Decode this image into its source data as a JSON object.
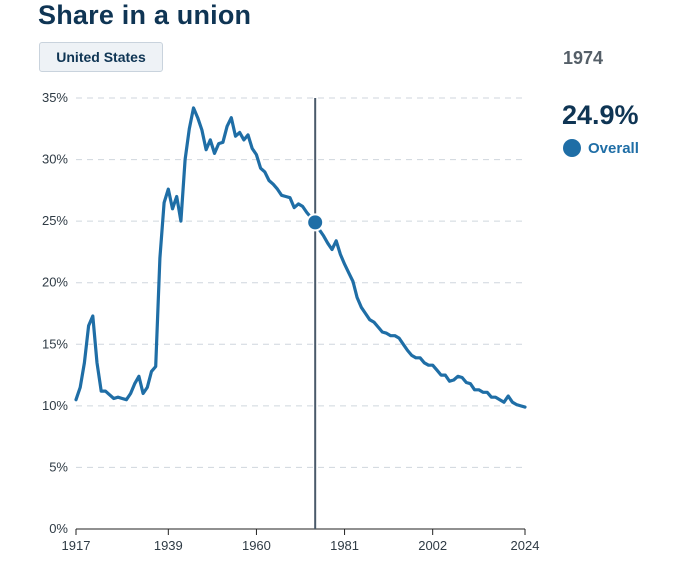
{
  "title": "Share in a union",
  "region_button": "United States",
  "selected": {
    "year": "1974",
    "value": "24.9%",
    "series_label": "Overall",
    "x": 1974,
    "y": 24.9
  },
  "colors": {
    "line": "#1f6ea6",
    "title": "#0f3554",
    "marker_line": "#4a5a6a",
    "grid": "#cfd6dd"
  },
  "chart_data": {
    "type": "line",
    "title": "Share in a union",
    "xlabel": "",
    "ylabel": "",
    "xlim": [
      1917,
      2024
    ],
    "ylim": [
      0,
      35
    ],
    "x_ticks": [
      1917,
      1939,
      1960,
      1981,
      2002,
      2024
    ],
    "y_ticks": [
      0,
      5,
      10,
      15,
      20,
      25,
      30,
      35
    ],
    "y_tick_labels": [
      "0%",
      "5%",
      "10%",
      "15%",
      "20%",
      "25%",
      "30%",
      "35%"
    ],
    "grid": true,
    "series": [
      {
        "name": "Overall",
        "x": [
          1917,
          1918,
          1919,
          1920,
          1921,
          1922,
          1923,
          1924,
          1925,
          1926,
          1927,
          1928,
          1929,
          1930,
          1931,
          1932,
          1933,
          1934,
          1935,
          1936,
          1937,
          1938,
          1939,
          1940,
          1941,
          1942,
          1943,
          1944,
          1945,
          1946,
          1947,
          1948,
          1949,
          1950,
          1951,
          1952,
          1953,
          1954,
          1955,
          1956,
          1957,
          1958,
          1959,
          1960,
          1961,
          1962,
          1963,
          1964,
          1965,
          1966,
          1967,
          1968,
          1969,
          1970,
          1971,
          1972,
          1973,
          1974,
          1975,
          1976,
          1977,
          1978,
          1979,
          1980,
          1981,
          1982,
          1983,
          1984,
          1985,
          1986,
          1987,
          1988,
          1989,
          1990,
          1991,
          1992,
          1993,
          1994,
          1995,
          1996,
          1997,
          1998,
          1999,
          2000,
          2001,
          2002,
          2003,
          2004,
          2005,
          2006,
          2007,
          2008,
          2009,
          2010,
          2011,
          2012,
          2013,
          2014,
          2015,
          2016,
          2017,
          2018,
          2019,
          2020,
          2021,
          2022,
          2023,
          2024
        ],
        "values": [
          10.5,
          11.5,
          13.5,
          16.5,
          17.3,
          13.5,
          11.2,
          11.2,
          10.9,
          10.6,
          10.7,
          10.6,
          10.5,
          11.0,
          11.8,
          12.4,
          11.0,
          11.5,
          12.8,
          13.2,
          22.0,
          26.5,
          27.6,
          26.0,
          27.0,
          25.0,
          30.0,
          32.5,
          34.2,
          33.4,
          32.4,
          30.8,
          31.6,
          30.5,
          31.3,
          31.4,
          32.7,
          33.4,
          31.9,
          32.2,
          31.6,
          32.0,
          30.9,
          30.4,
          29.3,
          29.0,
          28.3,
          28.0,
          27.6,
          27.1,
          27.0,
          26.9,
          26.1,
          26.4,
          26.2,
          25.7,
          25.3,
          24.9,
          24.3,
          23.8,
          23.2,
          22.7,
          23.4,
          22.3,
          21.5,
          20.8,
          20.1,
          18.8,
          18.0,
          17.5,
          17.0,
          16.8,
          16.4,
          16.0,
          15.9,
          15.7,
          15.7,
          15.5,
          15.0,
          14.5,
          14.1,
          13.9,
          13.9,
          13.5,
          13.3,
          13.3,
          12.9,
          12.5,
          12.5,
          12.0,
          12.1,
          12.4,
          12.3,
          11.9,
          11.8,
          11.3,
          11.3,
          11.1,
          11.1,
          10.7,
          10.7,
          10.5,
          10.3,
          10.8,
          10.3,
          10.1,
          10.0,
          9.9
        ]
      }
    ]
  }
}
